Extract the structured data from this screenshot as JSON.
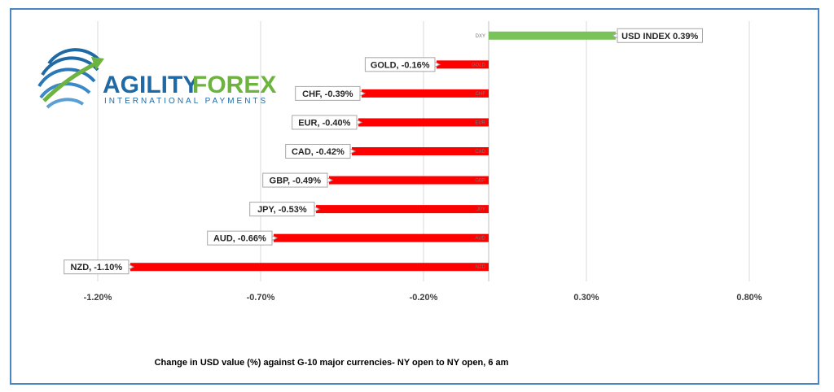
{
  "caption": "Change in  USD value (%)  against  G-10 major currencies-  NY open to  NY open, 6 am",
  "logo": {
    "brand_a": "AGILITY",
    "brand_b": "FOREX",
    "tagline": "INTERNATIONAL PAYMENTS"
  },
  "colors": {
    "positive": "#7ac35b",
    "negative": "#ff0000",
    "grid": "#d9d9d9",
    "frame": "#4a86c6",
    "brand_blue": "#1f6aa5",
    "brand_green": "#6db33f"
  },
  "chart_data": {
    "type": "bar",
    "orientation": "horizontal",
    "title": "",
    "xlabel": "",
    "ylabel": "",
    "xlim": [
      -1.45,
      1.0
    ],
    "grid": true,
    "legend": "none",
    "x_ticks": [
      "-1.20%",
      "-0.70%",
      "-0.20%",
      "0.30%",
      "0.80%"
    ],
    "x_tick_values": [
      -1.2,
      -0.7,
      -0.2,
      0.3,
      0.8
    ],
    "categories": [
      "DXY",
      "GOLD",
      "CHF",
      "EUR",
      "CAD",
      "GBP",
      "JPY",
      "AUD",
      "NZD"
    ],
    "values": [
      0.39,
      -0.16,
      -0.39,
      -0.4,
      -0.42,
      -0.49,
      -0.53,
      -0.66,
      -1.1
    ],
    "data_labels": [
      "USD INDEX 0.39%",
      "GOLD, -0.16%",
      "CHF, -0.39%",
      "EUR, -0.40%",
      "CAD, -0.42%",
      "GBP, -0.49%",
      "JPY, -0.53%",
      "AUD, -0.66%",
      "NZD, -1.10%"
    ]
  }
}
